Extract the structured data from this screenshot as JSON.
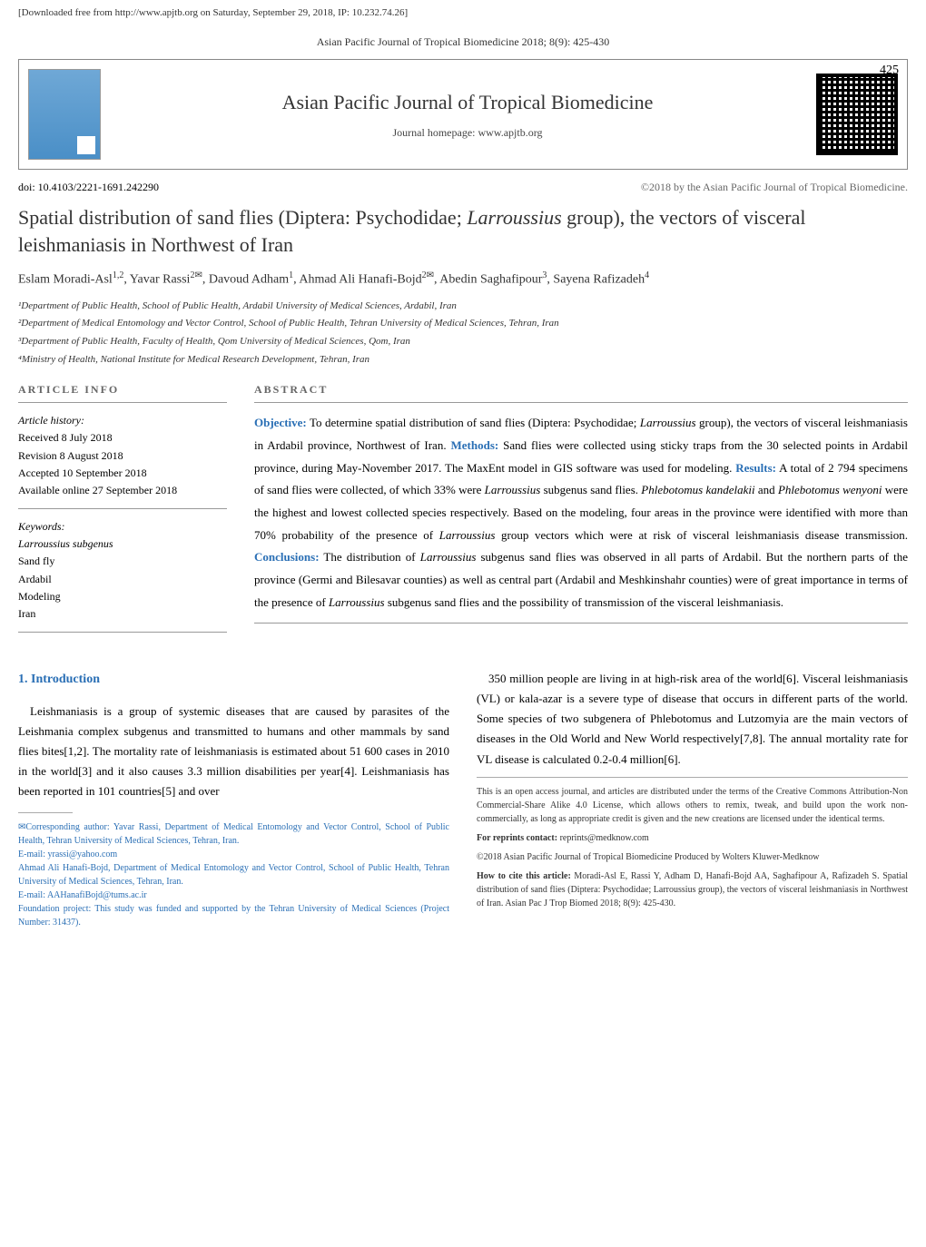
{
  "download_notice": "[Downloaded free from http://www.apjtb.org on Saturday, September 29, 2018, IP: 10.232.74.26]",
  "journal_citation": "Asian Pacific Journal of Tropical Biomedicine 2018; 8(9): 425-430",
  "page_number": "425",
  "header": {
    "journal_title": "Asian Pacific Journal of Tropical Biomedicine",
    "homepage": "Journal homepage: www.apjtb.org"
  },
  "doi": "doi: 10.4103/2221-1691.242290",
  "copyright_line": "©2018 by the Asian Pacific Journal of Tropical Biomedicine.",
  "title_parts": {
    "p1": "Spatial distribution of sand flies (Diptera: Psychodidae; ",
    "p2_italic": "Larroussius",
    "p3": " group), the vectors of visceral leishmaniasis in Northwest of Iran"
  },
  "authors_html": "Eslam Moradi-Asl<sup>1,2</sup>, Yavar Rassi<sup>2✉</sup>, Davoud Adham<sup>1</sup>, Ahmad Ali Hanafi-Bojd<sup>2✉</sup>, Abedin Saghafipour<sup>3</sup>, Sayena Rafizadeh<sup>4</sup>",
  "affiliations": [
    "¹Department of Public Health, School of Public Health, Ardabil University of Medical Sciences, Ardabil, Iran",
    "²Department of Medical Entomology and Vector Control, School of Public Health, Tehran University of Medical Sciences, Tehran, Iran",
    "³Department of Public Health, Faculty of Health, Qom University of Medical Sciences, Qom, Iran",
    "⁴Ministry of Health, National Institute for Medical Research Development, Tehran, Iran"
  ],
  "article_info_heading": "ARTICLE INFO",
  "abstract_heading": "ABSTRACT",
  "history": {
    "label": "Article history:",
    "received": "Received 8 July 2018",
    "revision": "Revision 8 August 2018",
    "accepted": "Accepted 10 September 2018",
    "online": "Available online 27 September 2018"
  },
  "keywords": {
    "label": "Keywords:",
    "items": [
      "Larroussius subgenus",
      "Sand fly",
      "Ardabil",
      "Modeling",
      "Iran"
    ]
  },
  "abstract": {
    "objective_label": "Objective:",
    "objective_text": " To determine spatial distribution of sand flies (Diptera: Psychodidae; ",
    "objective_italic": "Larroussius",
    "objective_text2": " group), the vectors of visceral leishmaniasis in Ardabil province, Northwest of Iran. ",
    "methods_label": "Methods:",
    "methods_text": " Sand flies were collected using sticky traps from the 30 selected points in Ardabil province, during May-November 2017. The MaxEnt model in GIS software was used for modeling. ",
    "results_label": "Results:",
    "results_text": " A total of 2 794 specimens of sand flies were collected, of which 33% were ",
    "results_italic1": "Larroussius",
    "results_text2": " subgenus sand flies. ",
    "results_italic2": "Phlebotomus kandelakii",
    "results_text3": " and ",
    "results_italic3": "Phlebotomus wenyoni",
    "results_text4": " were the highest and lowest collected species respectively. Based on the modeling, four areas in the province were identified with more than 70% probability of the presence of ",
    "results_italic4": "Larroussius",
    "results_text5": " group vectors which were at risk of visceral leishmaniasis disease transmission. ",
    "conclusions_label": "Conclusions:",
    "conclusions_text": " The distribution of ",
    "conclusions_italic1": "Larroussius",
    "conclusions_text2": " subgenus sand flies was observed in all parts of Ardabil. But the northern parts of the province (Germi and Bilesavar counties) as well as central part (Ardabil and Meshkinshahr counties) were of great importance in terms of the presence of ",
    "conclusions_italic2": "Larroussius",
    "conclusions_text3": " subgenus sand flies and the possibility of transmission of the visceral leishmaniasis."
  },
  "intro_heading": "1. Introduction",
  "intro_para1": "Leishmaniasis is a group of systemic diseases that are caused by parasites of the Leishmania complex subgenus and transmitted to humans and other mammals by sand flies bites[1,2]. The mortality rate of leishmaniasis is estimated about 51 600 cases in 2010 in the world[3] and it also causes 3.3 million disabilities per year[4]. Leishmaniasis has been reported in 101 countries[5] and over",
  "intro_para2": "350 million people are living in at high-risk area of the world[6]. Visceral leishmaniasis (VL) or kala-azar is a severe type of disease that occurs in different parts of the world. Some species of two subgenera of Phlebotomus and Lutzomyia are the main vectors of diseases in the Old World and New World respectively[7,8]. The annual mortality rate for VL disease is calculated 0.2-0.4 million[6].",
  "left_footnotes": [
    "✉Corresponding author: Yavar Rassi, Department of Medical Entomology and Vector Control, School of Public Health, Tehran University of Medical Sciences, Tehran, Iran.",
    "E-mail: yrassi@yahoo.com",
    "Ahmad Ali Hanafi-Bojd, Department of Medical Entomology and Vector Control, School of Public Health, Tehran University of Medical Sciences, Tehran, Iran.",
    "E-mail: AAHanafiBojd@tums.ac.ir",
    "Foundation project: This study was funded and supported by the Tehran University of Medical Sciences (Project Number: 31437)."
  ],
  "right_footnotes": {
    "license": "This is an open access journal, and articles are distributed under the terms of the Creative Commons Attribution-Non Commercial-Share Alike 4.0 License, which allows others to remix, tweak, and build upon the work non-commercially, as long as appropriate credit is given and the new creations are licensed under the identical terms.",
    "reprints_label": "For reprints contact:",
    "reprints": " reprints@medknow.com",
    "copyright": "©2018 Asian Pacific Journal of Tropical Biomedicine Produced by Wolters Kluwer-Medknow",
    "cite_label": "How to cite this article:",
    "cite": " Moradi-Asl E, Rassi Y, Adham D, Hanafi-Bojd AA, Saghafipour A, Rafizadeh S. Spatial distribution of sand flies (Diptera: Psychodidae; Larroussius group), the vectors of visceral leishmaniasis in Northwest of Iran. Asian Pac J Trop Biomed 2018; 8(9): 425-430."
  },
  "colors": {
    "highlight": "#2a6fb5",
    "text": "#000000",
    "muted": "#666666"
  }
}
